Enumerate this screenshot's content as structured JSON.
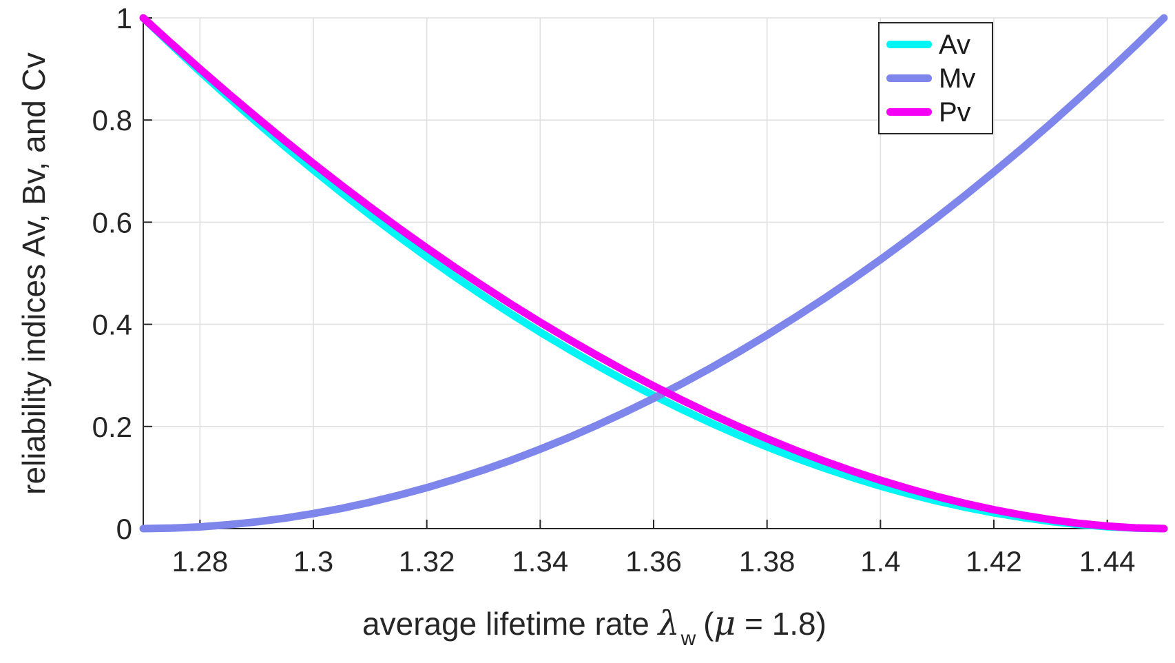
{
  "figure": {
    "ylabel": "reliability indices Av, Bv, and Cv",
    "xlabel": {
      "prefix": "average lifetime rate ",
      "lambda": "λ",
      "lambda_sub": "w",
      "paren": " (",
      "mu": "μ",
      "mu_value": " = 1.8)"
    },
    "legend": [
      {
        "label": "Av"
      },
      {
        "label": "Mv"
      },
      {
        "label": "Pv"
      }
    ]
  },
  "chart_data": {
    "type": "line",
    "title": "",
    "xlabel_text": "average lifetime rate λ_w (μ = 1.8)",
    "ylabel_text": "reliability indices Av, Bv, and Cv",
    "xlim": [
      1.27,
      1.45
    ],
    "ylim": [
      0,
      1
    ],
    "grid": true,
    "grid_color": "#e0e0e0",
    "axis_color": "#262626",
    "text_color": "#262626",
    "background": "#ffffff",
    "legend_position": "top-right",
    "xticks": [
      1.28,
      1.3,
      1.32,
      1.34,
      1.36,
      1.38,
      1.4,
      1.42,
      1.44
    ],
    "xtick_labels": [
      "1.28",
      "1.3",
      "1.32",
      "1.34",
      "1.36",
      "1.38",
      "1.4",
      "1.42",
      "1.44"
    ],
    "yticks": [
      0,
      0.2,
      0.4,
      0.6,
      0.8,
      1
    ],
    "ytick_labels": [
      "0",
      "0.2",
      "0.4",
      "0.6",
      "0.8",
      "1"
    ],
    "x": [
      1.27,
      1.275,
      1.28,
      1.285,
      1.29,
      1.295,
      1.3,
      1.305,
      1.31,
      1.315,
      1.32,
      1.325,
      1.33,
      1.335,
      1.34,
      1.345,
      1.35,
      1.355,
      1.36,
      1.365,
      1.37,
      1.375,
      1.38,
      1.385,
      1.39,
      1.395,
      1.4,
      1.405,
      1.41,
      1.415,
      1.42,
      1.425,
      1.43,
      1.435,
      1.44,
      1.445,
      1.45
    ],
    "series": [
      {
        "name": "Av",
        "color": "#00f5f5",
        "line_width": 11,
        "values": [
          1.0,
          0.9468,
          0.895,
          0.8447,
          0.7957,
          0.7482,
          0.7021,
          0.6574,
          0.6142,
          0.5723,
          0.5319,
          0.4929,
          0.4554,
          0.4193,
          0.3846,
          0.3515,
          0.3197,
          0.2894,
          0.2606,
          0.2333,
          0.2075,
          0.183,
          0.16,
          0.1386,
          0.1187,
          0.1003,
          0.0833,
          0.0679,
          0.054,
          0.0417,
          0.0309,
          0.0218,
          0.0141,
          0.0081,
          0.0037,
          0.001,
          0.0
        ]
      },
      {
        "name": "Mv",
        "color": "#7e86ec",
        "line_width": 11,
        "values": [
          0.0,
          0.0009,
          0.0034,
          0.0075,
          0.0132,
          0.0205,
          0.0294,
          0.0397,
          0.0517,
          0.0652,
          0.0801,
          0.0967,
          0.1148,
          0.1344,
          0.1556,
          0.1782,
          0.2024,
          0.2281,
          0.2552,
          0.284,
          0.3141,
          0.3459,
          0.379,
          0.4137,
          0.4499,
          0.4876,
          0.5267,
          0.5674,
          0.6095,
          0.6531,
          0.6982,
          0.7448,
          0.7929,
          0.8425,
          0.8935,
          0.946,
          1.0
        ]
      },
      {
        "name": "Pv",
        "color": "#f400f4",
        "line_width": 11,
        "values": [
          1.0,
          0.9495,
          0.9002,
          0.8521,
          0.8052,
          0.7595,
          0.715,
          0.6718,
          0.6298,
          0.589,
          0.5495,
          0.5112,
          0.4743,
          0.4385,
          0.4041,
          0.371,
          0.3391,
          0.3085,
          0.2793,
          0.2515,
          0.2249,
          0.1997,
          0.176,
          0.1536,
          0.1325,
          0.1129,
          0.0947,
          0.0781,
          0.0628,
          0.0491,
          0.037,
          0.0265,
          0.0176,
          0.0103,
          0.0049,
          0.0014,
          0.0
        ]
      }
    ]
  }
}
